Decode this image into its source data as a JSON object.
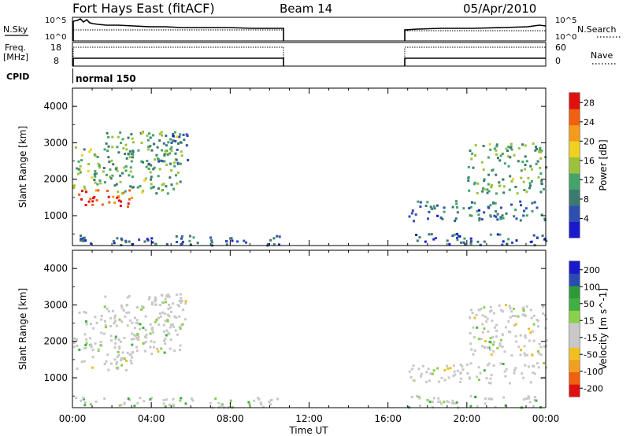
{
  "header": {
    "station": "Fort Hays East (fitACF)",
    "beam": "Beam 14",
    "date": "05/Apr/2010"
  },
  "strips": {
    "nsky_label": "N.Sky",
    "nsky_ticks": [
      "10^5",
      "10^0"
    ],
    "nsearch_label": "N.Search",
    "nsearch_ticks": [
      "10^5",
      "10^0"
    ],
    "freq_label": "Freq.",
    "freq_unit": "[MHz]",
    "freq_ticks": [
      "18",
      "8"
    ],
    "nave_label": "Nave",
    "nave_ticks": [
      "60",
      "0"
    ],
    "cpid_label": "CPID",
    "cpid_value": "normal 150"
  },
  "colors": {
    "power_scale": [
      "#1a1acc",
      "#2f4fb0",
      "#3b7a6f",
      "#44a36a",
      "#9cc23b",
      "#f0d020",
      "#f59a1a",
      "#f06010",
      "#e01010"
    ],
    "velocity_scale": [
      "#e01010",
      "#f06010",
      "#f0a020",
      "#f0c020",
      "#c8c8c8",
      "#c8c8c8",
      "#8bd04a",
      "#40b040",
      "#2d9a3a",
      "#2a4ab0",
      "#1a1acc"
    ],
    "ground_scatter": "#c8c8c8"
  },
  "chart_data": [
    {
      "type": "heatmap",
      "title": "",
      "xlabel": "Time UT",
      "ylabel": "Slant Range [km]",
      "xlim": [
        "00:00",
        "24:00"
      ],
      "ylim": [
        180,
        4500
      ],
      "x_ticks": [
        "00:00",
        "04:00",
        "08:00",
        "12:00",
        "16:00",
        "20:00",
        "00:00"
      ],
      "y_ticks": [
        "1000",
        "2000",
        "3000",
        "4000"
      ],
      "colorbar": {
        "label": "Power [dB]",
        "ticks": [
          "4",
          "8",
          "12",
          "16",
          "20",
          "24",
          "28"
        ],
        "range": [
          0,
          30
        ]
      },
      "data_gaps_ut": [
        [
          "10:40",
          "16:55"
        ]
      ],
      "regions": [
        {
          "t_start": 0.0,
          "t_end": 3.0,
          "range_start": 1200,
          "range_end": 1700,
          "value": 26
        },
        {
          "t_start": 0.0,
          "t_end": 1.5,
          "range_start": 1700,
          "range_end": 2900,
          "value": 14
        },
        {
          "t_start": 1.5,
          "t_end": 5.5,
          "range_start": 1600,
          "range_end": 3300,
          "value": 12
        },
        {
          "t_start": 3.8,
          "t_end": 5.8,
          "range_start": 2400,
          "range_end": 3300,
          "value": 8
        },
        {
          "t_start": 0.0,
          "t_end": 10.6,
          "range_start": 180,
          "range_end": 450,
          "value": 6
        },
        {
          "t_start": 17.0,
          "t_end": 24.0,
          "range_start": 850,
          "range_end": 1400,
          "value": 8
        },
        {
          "t_start": 20.0,
          "t_end": 24.0,
          "range_start": 1600,
          "range_end": 3000,
          "value": 12
        },
        {
          "t_start": 17.0,
          "t_end": 24.0,
          "range_start": 180,
          "range_end": 500,
          "value": 6
        }
      ]
    },
    {
      "type": "heatmap",
      "title": "",
      "xlabel": "Time UT",
      "ylabel": "Slant Range [km]",
      "xlim": [
        "00:00",
        "24:00"
      ],
      "ylim": [
        180,
        4500
      ],
      "x_ticks": [
        "00:00",
        "04:00",
        "08:00",
        "12:00",
        "16:00",
        "20:00",
        "00:00"
      ],
      "y_ticks": [
        "1000",
        "2000",
        "3000",
        "4000"
      ],
      "colorbar": {
        "label": "Velocity [m s^-1]",
        "ticks": [
          "200",
          "100",
          "50",
          "15",
          "-15",
          "-50",
          "-100",
          "-200"
        ],
        "range": [
          -250,
          250
        ]
      },
      "data_gaps_ut": [
        [
          "10:40",
          "16:55"
        ]
      ],
      "regions": [
        {
          "t_start": 0.0,
          "t_end": 3.0,
          "range_start": 1200,
          "range_end": 1700,
          "value": 0
        },
        {
          "t_start": 0.0,
          "t_end": 1.5,
          "range_start": 1700,
          "range_end": 2900,
          "value": 20
        },
        {
          "t_start": 1.5,
          "t_end": 5.5,
          "range_start": 1600,
          "range_end": 3300,
          "value": 0
        },
        {
          "t_start": 3.8,
          "t_end": 5.8,
          "range_start": 2400,
          "range_end": 3300,
          "value": -20
        },
        {
          "t_start": 0.0,
          "t_end": 10.6,
          "range_start": 180,
          "range_end": 450,
          "value": 30
        },
        {
          "t_start": 17.0,
          "t_end": 24.0,
          "range_start": 850,
          "range_end": 1400,
          "value": 0
        },
        {
          "t_start": 20.0,
          "t_end": 24.0,
          "range_start": 1600,
          "range_end": 3000,
          "value": 0
        },
        {
          "t_start": 17.0,
          "t_end": 24.0,
          "range_start": 180,
          "range_end": 500,
          "value": 40
        }
      ]
    }
  ]
}
